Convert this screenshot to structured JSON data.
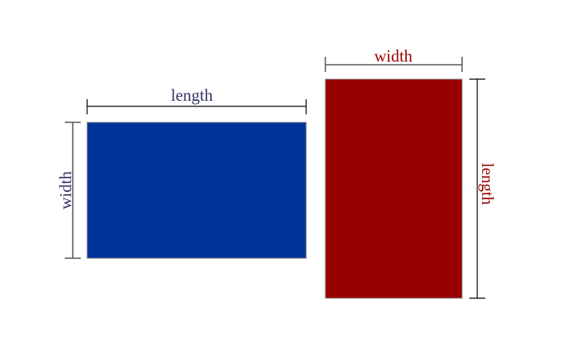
{
  "landscape_rectangle": {
    "fill": "#003399",
    "label_color": "#333366",
    "top_label": "length",
    "side_label": "width"
  },
  "portrait_rectangle": {
    "fill": "#990000",
    "label_color": "#990000",
    "top_label": "width",
    "side_label": "length"
  }
}
